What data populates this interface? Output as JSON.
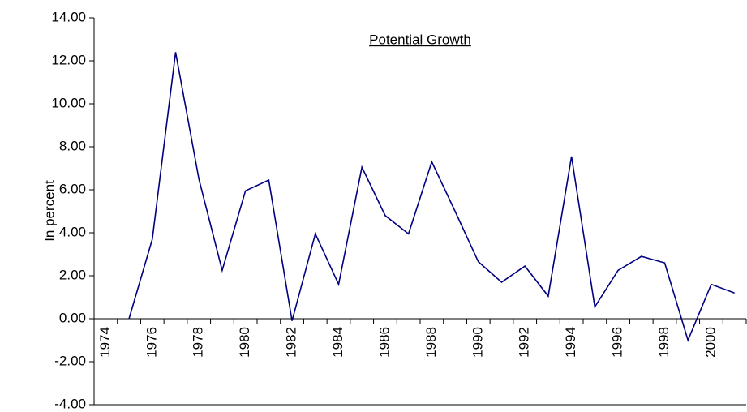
{
  "chart_data": {
    "type": "line",
    "title": "Potential Growth",
    "y_label": "In percent",
    "categories": [
      "1974",
      null,
      "1976",
      null,
      "1978",
      null,
      "1980",
      null,
      "1982",
      null,
      "1984",
      null,
      "1986",
      null,
      "1988",
      null,
      "1990",
      null,
      "1992",
      null,
      "1994",
      null,
      "1996",
      null,
      "1998",
      null,
      "2000",
      null
    ],
    "series": [
      {
        "name": "Potential Growth",
        "color": "#000080",
        "values": [
          null,
          0,
          3.7,
          12.4,
          6.5,
          2.25,
          5.95,
          6.45,
          -0.1,
          3.95,
          1.6,
          7.05,
          4.8,
          3.95,
          7.3,
          5.0,
          2.65,
          1.7,
          2.45,
          1.05,
          7.55,
          0.55,
          2.25,
          2.9,
          2.6,
          -1.0,
          1.6,
          1.2
        ]
      }
    ],
    "ylim": [
      -4,
      14
    ],
    "yticks": [
      {
        "value": -4,
        "label": "-4.00"
      },
      {
        "value": -2,
        "label": "-2.00"
      },
      {
        "value": 0,
        "label": "0.00"
      },
      {
        "value": 2,
        "label": "2.00"
      },
      {
        "value": 4,
        "label": "4.00"
      },
      {
        "value": 6,
        "label": "6.00"
      },
      {
        "value": 8,
        "label": "8.00"
      },
      {
        "value": 10,
        "label": "10.00"
      },
      {
        "value": 12,
        "label": "12.00"
      },
      {
        "value": 14,
        "label": "14.00"
      }
    ],
    "grid": false
  }
}
